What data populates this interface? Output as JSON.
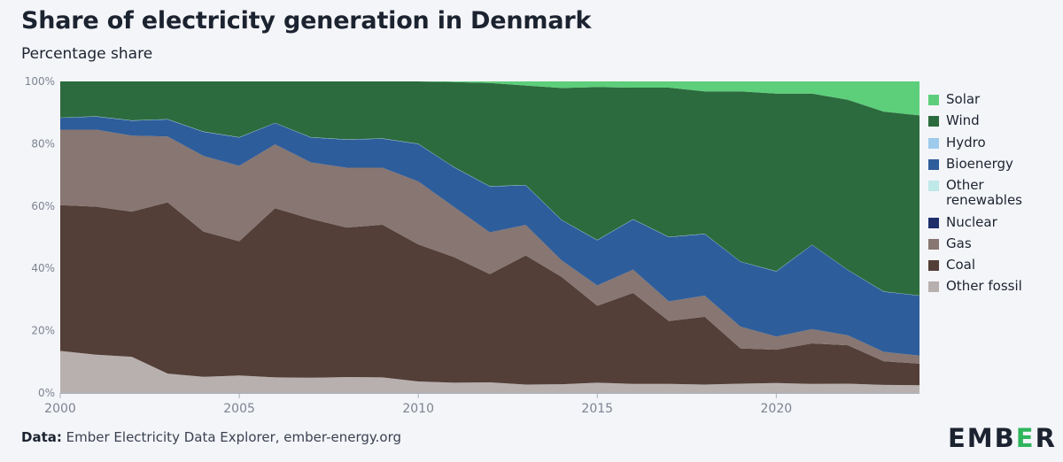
{
  "title": "Share of electricity generation in Denmark",
  "subtitle": "Percentage share",
  "source_label": "Data:",
  "source_text": "Ember Electricity Data Explorer, ember-energy.org",
  "logo": {
    "left": "EMB",
    "mid": "E",
    "right": "R"
  },
  "chart_data": {
    "type": "area",
    "stacked": true,
    "title": "Share of electricity generation in Denmark",
    "ylabel": "Percentage share",
    "xlabel": "",
    "ylim": [
      0,
      100
    ],
    "y_ticks": [
      0,
      20,
      40,
      60,
      80,
      100
    ],
    "y_tick_labels": [
      "0%",
      "20%",
      "40%",
      "60%",
      "80%",
      "100%"
    ],
    "x_ticks": [
      2000,
      2005,
      2010,
      2015,
      2020
    ],
    "x_tick_labels": [
      "2000",
      "2005",
      "2010",
      "2015",
      "2020"
    ],
    "legend_position": "right",
    "x": [
      2000,
      2001,
      2002,
      2003,
      2004,
      2005,
      2006,
      2007,
      2008,
      2009,
      2010,
      2011,
      2012,
      2013,
      2014,
      2015,
      2016,
      2017,
      2018,
      2019,
      2020,
      2021,
      2022,
      2023,
      2024
    ],
    "series": [
      {
        "name": "Other fossil",
        "color": "#b8b0ae",
        "values": [
          13.5,
          12.3,
          11.6,
          6.2,
          5.2,
          5.6,
          5.0,
          4.9,
          5.1,
          5.0,
          3.7,
          3.3,
          3.4,
          2.7,
          2.8,
          3.3,
          2.9,
          2.9,
          2.7,
          3.0,
          3.2,
          2.9,
          3.0,
          2.6,
          2.5
        ]
      },
      {
        "name": "Coal",
        "color": "#533f38",
        "values": [
          46.8,
          47.5,
          46.6,
          55.0,
          46.6,
          43.1,
          54.3,
          51.0,
          48.0,
          49.0,
          44.0,
          40.3,
          34.7,
          41.4,
          34.5,
          24.7,
          29.2,
          20.2,
          21.8,
          11.3,
          10.7,
          13.0,
          12.3,
          7.6,
          6.9
        ]
      },
      {
        "name": "Gas",
        "color": "#877671",
        "values": [
          24.2,
          24.7,
          24.4,
          21.1,
          24.3,
          24.2,
          20.5,
          18.1,
          19.2,
          18.3,
          20.2,
          16.1,
          13.4,
          9.8,
          5.3,
          6.5,
          7.5,
          6.3,
          6.8,
          7.0,
          4.2,
          4.6,
          3.2,
          3.0,
          2.6
        ]
      },
      {
        "name": "Nuclear",
        "color": "#1f2e6b",
        "values": [
          0,
          0,
          0,
          0,
          0,
          0,
          0,
          0,
          0,
          0,
          0,
          0,
          0,
          0,
          0,
          0,
          0,
          0,
          0,
          0,
          0,
          0,
          0,
          0,
          0
        ]
      },
      {
        "name": "Other renewables",
        "color": "#bfe8e8",
        "values": [
          0,
          0,
          0,
          0,
          0,
          0,
          0,
          0,
          0,
          0,
          0,
          0,
          0,
          0,
          0,
          0,
          0,
          0,
          0,
          0,
          0,
          0,
          0,
          0,
          0
        ]
      },
      {
        "name": "Bioenergy",
        "color": "#2e5d9b",
        "values": [
          3.8,
          4.2,
          4.8,
          5.5,
          7.7,
          9.1,
          6.8,
          8.0,
          9.0,
          9.3,
          12.0,
          12.7,
          14.7,
          12.7,
          12.9,
          14.5,
          16.1,
          20.6,
          19.8,
          20.8,
          20.9,
          27.0,
          20.9,
          19.3,
          19.2
        ]
      },
      {
        "name": "Hydro",
        "color": "#9ecbec",
        "values": [
          0.1,
          0.1,
          0.1,
          0.1,
          0.1,
          0.1,
          0.1,
          0.1,
          0.1,
          0.1,
          0.1,
          0.1,
          0.1,
          0.1,
          0.1,
          0.1,
          0.1,
          0.1,
          0.1,
          0.1,
          0.1,
          0.1,
          0.1,
          0.1,
          0.1
        ]
      },
      {
        "name": "Wind",
        "color": "#2c6b3e",
        "values": [
          11.6,
          11.2,
          12.5,
          12.1,
          16.1,
          17.9,
          13.3,
          17.9,
          18.6,
          18.3,
          20.0,
          27.3,
          33.1,
          31.9,
          42.3,
          49.1,
          42.2,
          47.9,
          45.8,
          54.6,
          57.0,
          48.5,
          54.6,
          57.7,
          57.8
        ]
      },
      {
        "name": "Solar",
        "color": "#5dce7a",
        "values": [
          0,
          0,
          0,
          0,
          0,
          0,
          0,
          0,
          0,
          0,
          0,
          0.2,
          0.5,
          1.3,
          2.1,
          1.8,
          2.0,
          2.0,
          3.2,
          3.2,
          3.9,
          3.9,
          5.9,
          9.7,
          10.9
        ]
      }
    ]
  }
}
